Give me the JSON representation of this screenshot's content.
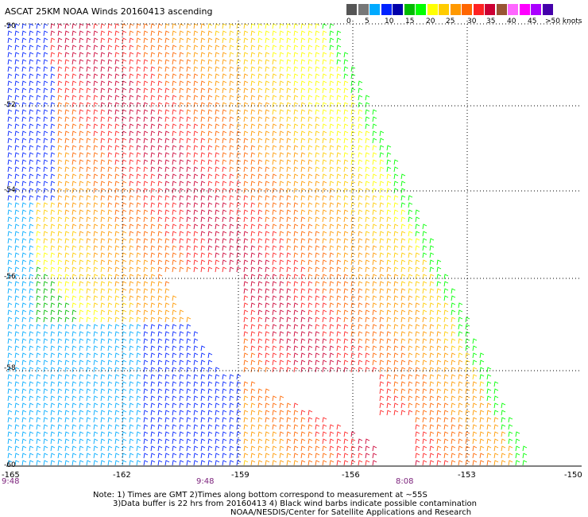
{
  "title": "ASCAT 25KM NOAA Winds 20160413 ascending",
  "legend": {
    "colors": [
      "#555555",
      "#777777",
      "#00aaff",
      "#0022ff",
      "#0000aa",
      "#00bb00",
      "#00ff00",
      "#ffff00",
      "#ffcc00",
      "#ff9900",
      "#ff6600",
      "#ff2222",
      "#cc0033",
      "#995533",
      "#ff66ff",
      "#ff00ff",
      "#aa00ff",
      "#4400aa"
    ],
    "ticks": [
      "0",
      "5",
      "10",
      "15",
      "20",
      "25",
      "30",
      "35",
      "40",
      "45",
      ">50 knots"
    ]
  },
  "lat_labels": [
    "-50",
    "-52",
    "-54",
    "-56",
    "-58",
    "-60"
  ],
  "lon_labels": [
    "-165",
    "-162",
    "-159",
    "-156",
    "-153",
    "-150"
  ],
  "time_labels": [
    "9:48",
    "9:48",
    "8:08"
  ],
  "notes": {
    "line1": "Note: 1) Times are GMT  2)Times along bottom correspond to measurement at ~55S",
    "line2": "3)Data buffer is 22 hrs from 20160413  4) Black wind barbs indicate possible contamination",
    "line3": "NOAA/NESDIS/Center for Satellite Applications and Research"
  },
  "map": {
    "grid": "dotted",
    "lat_range": [
      -60,
      -50
    ],
    "lon_range": [
      -165,
      -150
    ],
    "feature": "wind barbs colored by speed"
  }
}
